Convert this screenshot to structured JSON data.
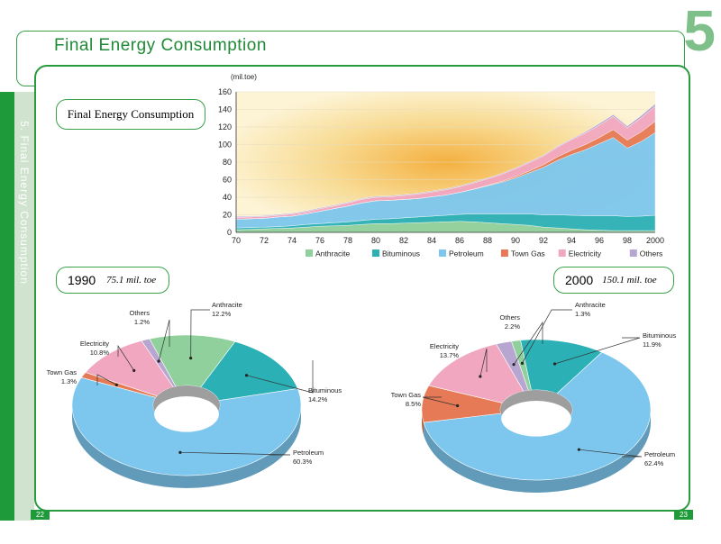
{
  "page": {
    "section_number": "5",
    "header_title": "Final Energy Consumption",
    "side_title": "5. Final Energy Consumption",
    "page_left": "22",
    "page_right": "23"
  },
  "colors": {
    "green": "#1f9a3a",
    "anthracite": "#8fd09c",
    "bituminous": "#2bb0b6",
    "petroleum": "#7dc7ee",
    "town_gas": "#e67a56",
    "electricity": "#f2a7c0",
    "others": "#b7a6cf"
  },
  "chart_data": [
    {
      "type": "area",
      "title": "Final Energy Consumption",
      "ylabel": "(mil.toe)",
      "ylim": [
        0,
        160
      ],
      "yticks": [
        "0",
        "20",
        "40",
        "60",
        "80",
        "100",
        "120",
        "140",
        "160"
      ],
      "x": [
        70,
        71,
        72,
        73,
        74,
        75,
        76,
        77,
        78,
        79,
        80,
        81,
        82,
        83,
        84,
        85,
        86,
        87,
        88,
        89,
        90,
        91,
        92,
        93,
        94,
        95,
        96,
        97,
        98,
        99,
        100
      ],
      "xtick_labels": [
        "70",
        "72",
        "74",
        "76",
        "78",
        "80",
        "82",
        "84",
        "86",
        "88",
        "90",
        "92",
        "94",
        "96",
        "98",
        "2000"
      ],
      "series": [
        {
          "name": "Anthracite",
          "values": [
            3,
            3.5,
            4,
            4.5,
            5,
            6,
            7,
            7.5,
            8,
            9,
            10,
            10,
            10.5,
            11,
            11.5,
            12,
            12.5,
            12,
            11,
            10,
            9,
            8,
            6,
            5,
            4,
            3,
            2.5,
            2,
            2,
            2,
            2
          ]
        },
        {
          "name": "Bituminous",
          "values": [
            2,
            2,
            2,
            2,
            2.5,
            3,
            3,
            3.5,
            4,
            4.5,
            5,
            5.5,
            6,
            6.5,
            7,
            7.5,
            8,
            9,
            10,
            11,
            12,
            13,
            14,
            15,
            15.5,
            16,
            16.5,
            17,
            16,
            16.5,
            17.5
          ]
        },
        {
          "name": "Petroleum",
          "values": [
            10,
            10,
            10,
            11,
            11,
            12,
            14,
            16,
            18,
            20,
            21,
            21,
            21,
            21,
            22,
            23,
            25,
            28,
            32,
            36,
            41,
            47,
            54,
            62,
            69,
            75,
            82,
            89,
            78,
            85,
            94
          ]
        },
        {
          "name": "Town Gas",
          "values": [
            0,
            0,
            0,
            0,
            0,
            0,
            0,
            0,
            0,
            0,
            0,
            0,
            0,
            0,
            0,
            0,
            0,
            0.2,
            0.5,
            1,
            1.5,
            2,
            3,
            4,
            5,
            6,
            7,
            9,
            9,
            11,
            13
          ]
        },
        {
          "name": "Electricity",
          "values": [
            2,
            2,
            2,
            2,
            2.5,
            2.5,
            3,
            3,
            3.5,
            4,
            4,
            4,
            4.5,
            5,
            5.5,
            6,
            6.5,
            7,
            7.5,
            8,
            9,
            9.5,
            10,
            11,
            12,
            13,
            14,
            15,
            14,
            16,
            17
          ]
        },
        {
          "name": "Others",
          "values": [
            1,
            1,
            1,
            1,
            1,
            1,
            1,
            1,
            1,
            1,
            1,
            1,
            1,
            1,
            1,
            1,
            1,
            1,
            1,
            1,
            1,
            1,
            1,
            1,
            1,
            1.5,
            2,
            2,
            2,
            2.5,
            3
          ]
        }
      ]
    },
    {
      "type": "pie",
      "title": "1990",
      "subtitle": "75.1 mil. toe",
      "slices": [
        {
          "name": "Anthracite",
          "value": 12.2,
          "label": "12.2%"
        },
        {
          "name": "Bituminous",
          "value": 14.2,
          "label": "14.2%"
        },
        {
          "name": "Petroleum",
          "value": 60.3,
          "label": "60.3%"
        },
        {
          "name": "Town Gas",
          "value": 1.3,
          "label": "1.3%"
        },
        {
          "name": "Electricity",
          "value": 10.8,
          "label": "10.8%"
        },
        {
          "name": "Others",
          "value": 1.2,
          "label": "1.2%"
        }
      ]
    },
    {
      "type": "pie",
      "title": "2000",
      "subtitle": "150.1 mil. toe",
      "slices": [
        {
          "name": "Anthracite",
          "value": 1.3,
          "label": "1.3%"
        },
        {
          "name": "Bituminous",
          "value": 11.9,
          "label": "11.9%"
        },
        {
          "name": "Petroleum",
          "value": 62.4,
          "label": "62.4%"
        },
        {
          "name": "Town Gas",
          "value": 8.5,
          "label": "8.5%"
        },
        {
          "name": "Electricity",
          "value": 13.7,
          "label": "13.7%"
        },
        {
          "name": "Others",
          "value": 2.2,
          "label": "2.2%"
        }
      ]
    }
  ]
}
